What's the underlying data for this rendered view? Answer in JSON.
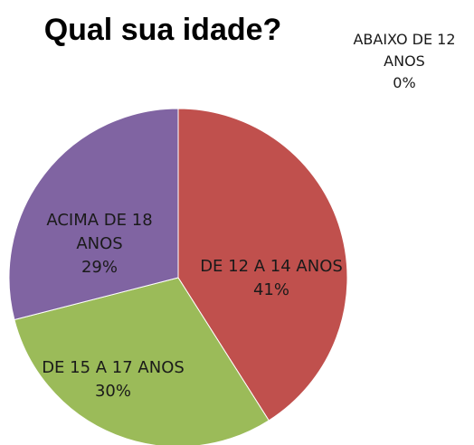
{
  "chart_data": {
    "type": "pie",
    "title": "Qual sua idade?",
    "categories": [
      "ABAIXO DE 12 ANOS",
      "DE 12 A 14 ANOS",
      "DE 15 A 17 ANOS",
      "ACIMA DE 18 ANOS"
    ],
    "values": [
      0,
      41,
      30,
      29
    ],
    "value_labels": [
      "0%",
      "41%",
      "30%",
      "29%"
    ],
    "colors": [
      "#4f81bd",
      "#c0504d",
      "#9bbb59",
      "#8064a2"
    ]
  }
}
